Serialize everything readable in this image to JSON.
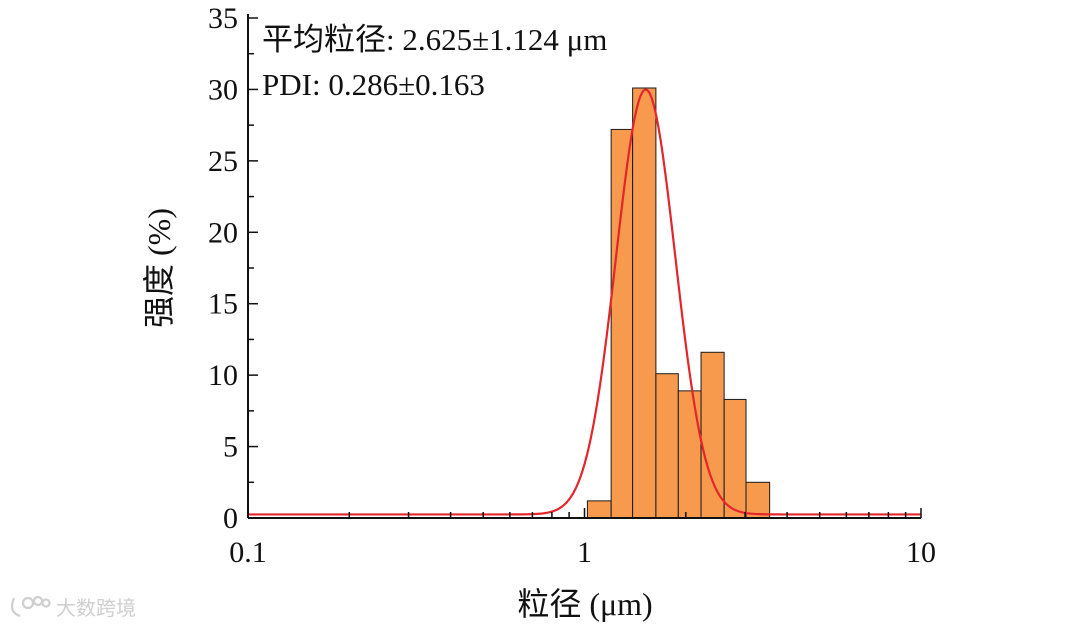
{
  "chart_data": {
    "type": "bar",
    "title": "",
    "xlabel": "粒径 (μm)",
    "ylabel": "强度 (%)",
    "x_scale": "log",
    "xlim": [
      0.1,
      10
    ],
    "ylim": [
      0,
      35
    ],
    "x_ticks": [
      0.1,
      1,
      10
    ],
    "x_tick_labels": [
      "0.1",
      "1",
      "10"
    ],
    "y_ticks": [
      0,
      5,
      10,
      15,
      20,
      25,
      30,
      35
    ],
    "y_tick_labels": [
      "0",
      "5",
      "10",
      "15",
      "20",
      "25",
      "30",
      "35"
    ],
    "grid": false,
    "annotations": [
      "平均粒径: 2.625±1.124 μm",
      "PDI: 0.286±0.163"
    ],
    "bars": [
      {
        "x0": 1.02,
        "x1": 1.2,
        "value": 1.2
      },
      {
        "x0": 1.2,
        "x1": 1.39,
        "value": 27.2
      },
      {
        "x0": 1.39,
        "x1": 1.63,
        "value": 30.1
      },
      {
        "x0": 1.63,
        "x1": 1.9,
        "value": 10.1
      },
      {
        "x0": 1.9,
        "x1": 2.22,
        "value": 8.9
      },
      {
        "x0": 2.22,
        "x1": 2.6,
        "value": 11.6
      },
      {
        "x0": 2.6,
        "x1": 3.02,
        "value": 8.3
      },
      {
        "x0": 3.02,
        "x1": 3.55,
        "value": 2.5
      }
    ],
    "fit_curve": {
      "type": "lognormal",
      "peak_x": 1.52,
      "peak_y": 30.0,
      "log10_sigma": 0.088,
      "baseline": 0.25
    },
    "colors": {
      "bar_fill": "#F79A4E",
      "bar_edge": "#1a1a1a",
      "curve": "#E3262B",
      "axis": "#111111"
    }
  },
  "watermark": "大数跨境"
}
